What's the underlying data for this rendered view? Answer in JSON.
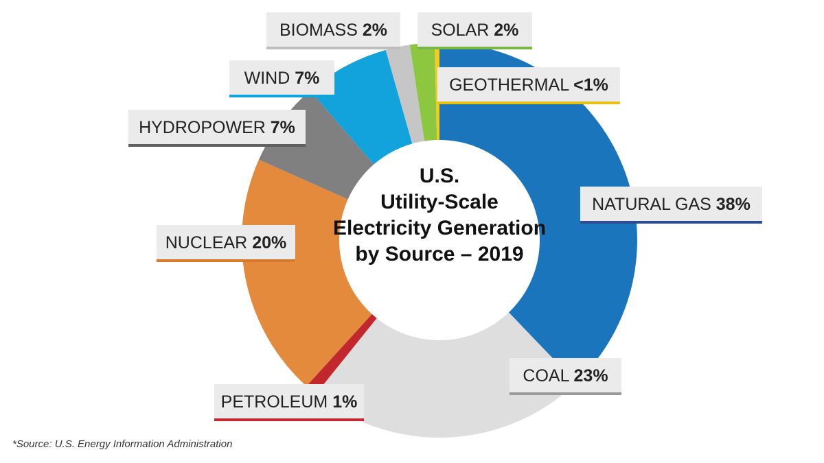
{
  "chart_data": {
    "type": "donut",
    "title": [
      "U.S.",
      "Utility-Scale",
      "Electricity Generation",
      "by Source – 2019"
    ],
    "categories": [
      "NATURAL GAS",
      "COAL",
      "PETROLEUM",
      "NUCLEAR",
      "HYDROPOWER",
      "WIND",
      "BIOMASS",
      "SOLAR",
      "GEOTHERMAL"
    ],
    "values": [
      38,
      23,
      1,
      20,
      7,
      7,
      2,
      2,
      0.4
    ],
    "value_labels": [
      "38%",
      "23%",
      "1%",
      "20%",
      "7%",
      "7%",
      "2%",
      "2%",
      "<1%"
    ],
    "colors": [
      "#1b75bc",
      "#dedede",
      "#c1272d",
      "#e38a3d",
      "#808080",
      "#12a3dd",
      "#c6c6c6",
      "#8dc63f",
      "#f0cd1f"
    ],
    "source": "*Source: U.S. Energy Information Administration"
  }
}
